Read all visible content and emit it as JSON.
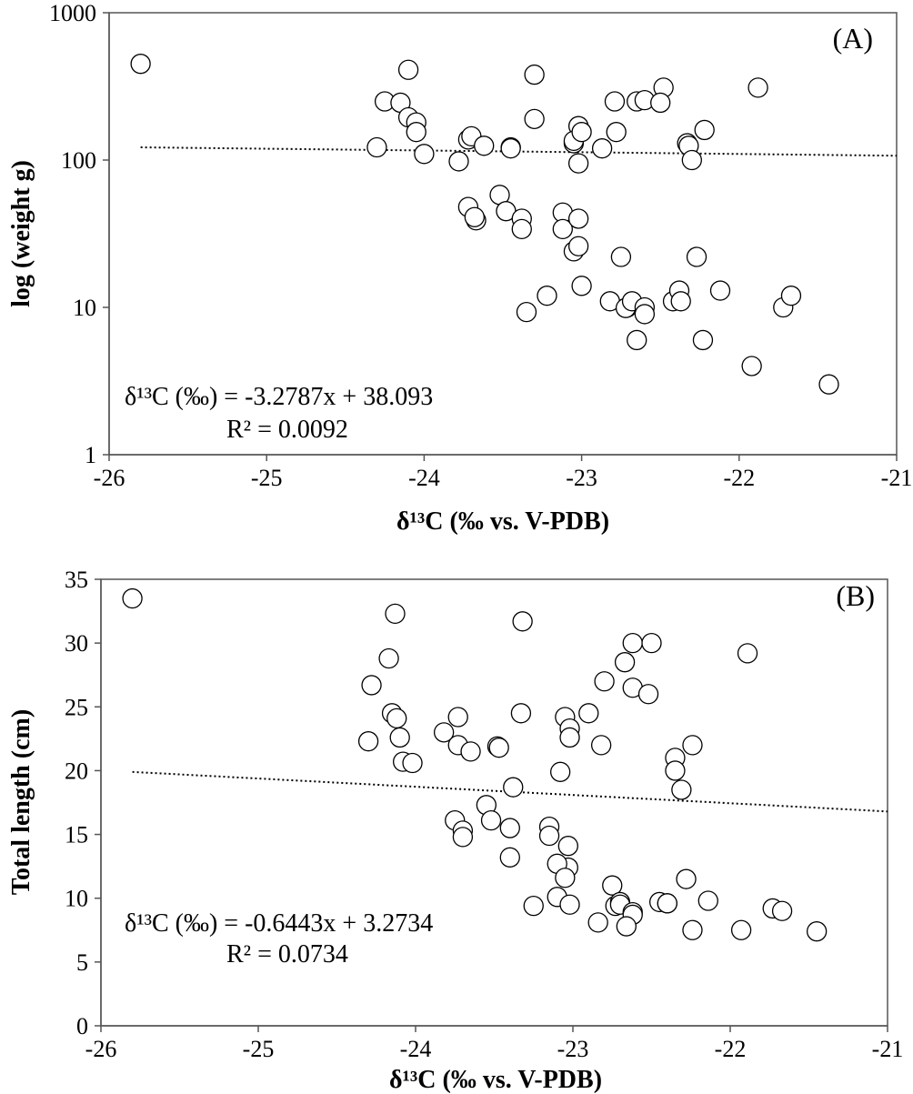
{
  "chart_data": [
    {
      "type": "scatter",
      "panel_label": "(A)",
      "xlabel": "δ¹³C (‰ vs. V-PDB)",
      "ylabel": "log (weight g)",
      "xlim": [
        -26,
        -21
      ],
      "ylim": [
        1,
        1000
      ],
      "y_scale": "log",
      "xticks": [
        "-26",
        "-25",
        "-24",
        "-23",
        "-22",
        "-21"
      ],
      "yticks": [
        "1",
        "10",
        "100",
        "1000"
      ],
      "equation": "δ¹³C (‰) = -3.2787x + 38.093",
      "r2": "R² = 0.0092",
      "trendline": {
        "x": [
          -25.8,
          -21
        ],
        "y": [
          122,
          107
        ]
      },
      "x": [
        -25.8,
        -24.1,
        -24.25,
        -24.15,
        -24.1,
        -24.05,
        -24.3,
        -24.05,
        -24.0,
        -23.78,
        -23.72,
        -23.7,
        -23.62,
        -23.45,
        -23.45,
        -23.3,
        -23.3,
        -23.05,
        -23.02,
        -23.05,
        -23.0,
        -23.02,
        -22.87,
        -22.79,
        -22.78,
        -22.65,
        -22.6,
        -22.48,
        -22.5,
        -22.33,
        -22.32,
        -22.3,
        -22.22,
        -21.88,
        -23.72,
        -23.67,
        -23.68,
        -23.52,
        -23.48,
        -23.38,
        -23.38,
        -23.12,
        -23.12,
        -23.02,
        -23.05,
        -23.02,
        -22.75,
        -23.0,
        -23.22,
        -23.35,
        -22.82,
        -22.71,
        -22.72,
        -22.68,
        -22.6,
        -22.6,
        -22.65,
        -22.42,
        -22.38,
        -22.37,
        -22.27,
        -22.23,
        -22.12,
        -21.92,
        -21.72,
        -21.67,
        -21.43
      ],
      "y": [
        450,
        410,
        250,
        245,
        195,
        180,
        122,
        155,
        110,
        98,
        138,
        145,
        125,
        122,
        120,
        190,
        380,
        130,
        170,
        135,
        155,
        95,
        120,
        250,
        155,
        250,
        255,
        310,
        245,
        130,
        125,
        100,
        160,
        310,
        48,
        39,
        41,
        58,
        45,
        40,
        34,
        44,
        34,
        40,
        24,
        26,
        22,
        14,
        12,
        9.3,
        11,
        10,
        9.9,
        11,
        10,
        9,
        6,
        11,
        13,
        11,
        22,
        6,
        13,
        4,
        10,
        12,
        3
      ]
    },
    {
      "type": "scatter",
      "panel_label": "(B)",
      "xlabel": "δ¹³C (‰ vs. V-PDB)",
      "ylabel": "Total length (cm)",
      "xlim": [
        -26,
        -21
      ],
      "ylim": [
        0,
        35
      ],
      "y_scale": "linear",
      "xticks": [
        "-26",
        "-25",
        "-24",
        "-23",
        "-22",
        "-21"
      ],
      "yticks": [
        "0",
        "5",
        "10",
        "15",
        "20",
        "25",
        "30",
        "35"
      ],
      "equation": "δ¹³C (‰)  = -0.6443x + 3.2734",
      "r2": "R² = 0.0734",
      "trendline": {
        "x": [
          -25.8,
          -21
        ],
        "y": [
          19.9,
          16.8
        ]
      },
      "x": [
        -25.8,
        -24.13,
        -24.17,
        -24.28,
        -24.15,
        -24.3,
        -24.12,
        -24.1,
        -24.08,
        -24.02,
        -23.82,
        -23.73,
        -23.73,
        -23.65,
        -23.48,
        -23.47,
        -23.38,
        -23.33,
        -23.32,
        -23.05,
        -23.02,
        -23.02,
        -23.08,
        -22.9,
        -22.82,
        -22.8,
        -22.67,
        -22.62,
        -22.62,
        -22.5,
        -22.52,
        -22.35,
        -22.35,
        -22.31,
        -22.24,
        -21.89,
        -23.75,
        -23.7,
        -23.7,
        -23.55,
        -23.52,
        -23.4,
        -23.4,
        -23.15,
        -23.15,
        -23.03,
        -23.03,
        -23.1,
        -23.05,
        -23.1,
        -23.02,
        -22.75,
        -22.73,
        -22.7,
        -22.7,
        -22.62,
        -22.62,
        -22.28,
        -22.45,
        -22.4,
        -22.4,
        -22.14,
        -23.25,
        -22.84,
        -22.66,
        -22.24,
        -21.93,
        -21.73,
        -21.67,
        -21.45
      ],
      "y": [
        33.5,
        32.3,
        28.8,
        26.7,
        24.5,
        22.3,
        24.1,
        22.6,
        20.7,
        20.6,
        23.0,
        24.2,
        22.0,
        21.5,
        21.9,
        21.8,
        18.7,
        24.5,
        31.7,
        24.2,
        23.3,
        22.6,
        19.9,
        24.5,
        22.0,
        27.0,
        28.5,
        30.0,
        26.5,
        30.0,
        26.0,
        21.0,
        20.0,
        18.5,
        22.0,
        29.2,
        16.1,
        15.3,
        14.8,
        17.3,
        16.1,
        15.5,
        13.2,
        15.6,
        14.9,
        14.1,
        12.4,
        12.7,
        11.6,
        10.1,
        9.5,
        11.0,
        9.4,
        9.7,
        9.5,
        8.9,
        8.7,
        11.5,
        9.7,
        9.6,
        9.6,
        9.8,
        9.4,
        8.1,
        7.8,
        7.5,
        7.5,
        9.2,
        9.0,
        7.4
      ]
    }
  ]
}
